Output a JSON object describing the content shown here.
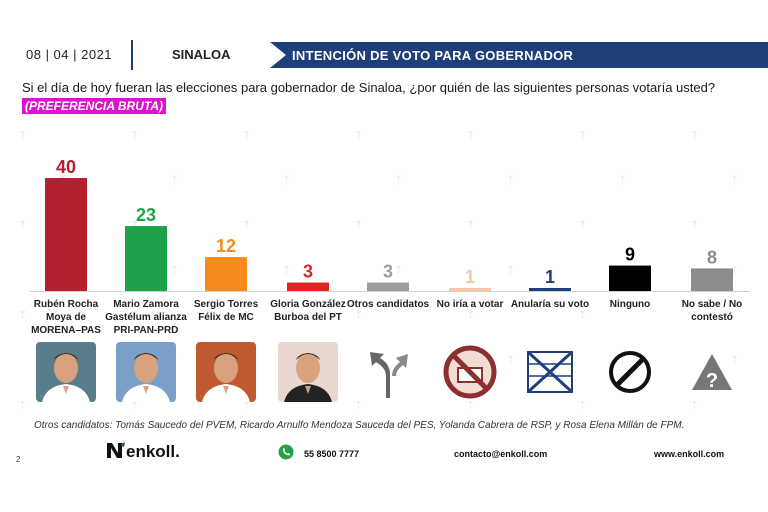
{
  "header": {
    "date": "08 | 04 | 2021",
    "region": "SINALOA",
    "banner": "INTENCIÓN DE VOTO PARA GOBERNADOR"
  },
  "question": "Si el día de hoy fueran las elecciones para gobernador de Sinaloa, ¿por quién de las siguientes personas votaría usted?",
  "tag": "(PREFERENCIA BRUTA)",
  "chart_data": {
    "type": "bar",
    "title": "",
    "xlabel": "",
    "ylabel": "",
    "ylim": [
      0,
      40
    ],
    "grid": false,
    "categories": [
      "Rubén Rocha Moya de MORENA–PAS",
      "Mario Zamora Gastélum alianza PRI-PAN-PRD",
      "Sergio Torres Félix de MC",
      "Gloria González Burboa del PT",
      "Otros candidatos",
      "No iría a votar",
      "Anularía su voto",
      "Ninguno",
      "No sabe / No contestó"
    ],
    "label_lines": [
      [
        "Rubén Rocha",
        "Moya de",
        "MORENA–PAS"
      ],
      [
        "Mario Zamora",
        "Gastélum alianza",
        "PRI-PAN-PRD"
      ],
      [
        "Sergio Torres",
        "Félix de MC"
      ],
      [
        "Gloria González",
        "Burboa del PT"
      ],
      [
        "Otros candidatos"
      ],
      [
        "No iría a votar"
      ],
      [
        "Anularía su voto"
      ],
      [
        "Ninguno"
      ],
      [
        "No sabe / No",
        "contestó"
      ]
    ],
    "values": [
      40,
      23,
      12,
      3,
      3,
      1,
      1,
      9,
      8
    ],
    "colors": [
      "#b5202e",
      "#1ea34b",
      "#f58b1f",
      "#e02424",
      "#9e9e9e",
      "#f5c6a8",
      "#1f3f7a",
      "#000000",
      "#8c8c8c"
    ],
    "value_colors": [
      "#b5202e",
      "#1ea34b",
      "#f58b1f",
      "#e02424",
      "#9e9e9e",
      "#f5c6a8",
      "#1f3f7a",
      "#000000",
      "#8c8c8c"
    ]
  },
  "icons": [
    {
      "name": "candidate-photo-rocha",
      "type": "photo",
      "shirt": "#ffffff",
      "bg": "#5a7d8c"
    },
    {
      "name": "candidate-photo-zamora",
      "type": "photo",
      "shirt": "#ffffff",
      "bg": "#7aa0c8"
    },
    {
      "name": "candidate-photo-torres",
      "type": "photo",
      "shirt": "#ffffff",
      "bg": "#c05a30"
    },
    {
      "name": "candidate-photo-gonzalez",
      "type": "photo",
      "shirt": "#222222",
      "bg": "#e8d8d0"
    },
    {
      "name": "split-arrows-icon",
      "type": "arrows"
    },
    {
      "name": "no-vote-icon",
      "type": "novote"
    },
    {
      "name": "crossed-ballot-icon",
      "type": "ballot"
    },
    {
      "name": "prohibited-icon",
      "type": "prohibited"
    },
    {
      "name": "question-warning-icon",
      "type": "question"
    }
  ],
  "footnote": "Otros candidatos: Tomás Saucedo del PVEM, Ricardo Arnulfo Mendoza Sauceda del PES, Yolanda Cabrera de RSP, y Rosa Elena Millán de FPM.",
  "footer": {
    "page": "2",
    "logo": "enkoll.",
    "phone": "55 8500 7777",
    "email": "contacto@enkoll.com",
    "web": "www.enkoll.com"
  }
}
